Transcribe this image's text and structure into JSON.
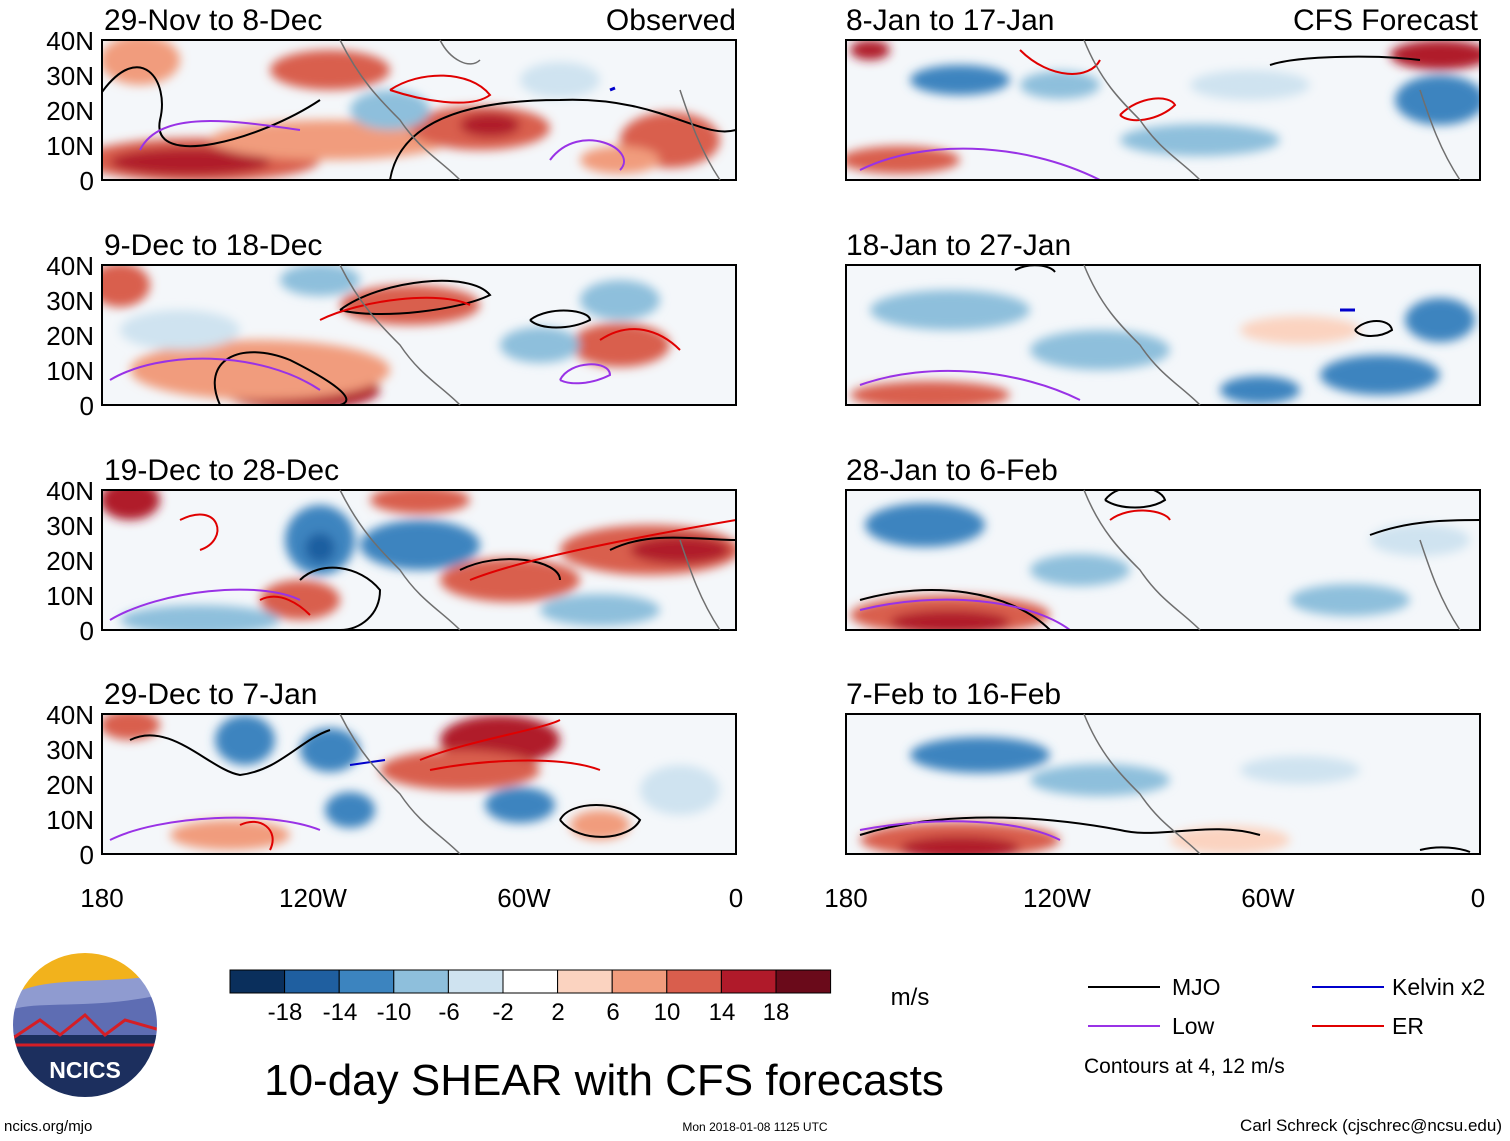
{
  "figure": {
    "title": "10-day SHEAR with CFS forecasts",
    "units": "m/s",
    "website": "ncics.org/mjo",
    "timestamp": "Mon 2018-01-08 1125 UTC",
    "author": "Carl Schreck (cjschrec@ncsu.edu)",
    "logo_text": "NCICS"
  },
  "columns": {
    "observed_label": "Observed",
    "forecast_label": "CFS Forecast"
  },
  "panels": {
    "observed": [
      "29-Nov to 8-Dec",
      "9-Dec to 18-Dec",
      "19-Dec to 28-Dec",
      "29-Dec to 7-Jan"
    ],
    "forecast": [
      "8-Jan to 17-Jan",
      "18-Jan to 27-Jan",
      "28-Jan to 6-Feb",
      "7-Feb to 16-Feb"
    ]
  },
  "axes": {
    "lat_labels": [
      "40N",
      "30N",
      "20N",
      "10N",
      "0"
    ],
    "lon_labels": [
      "180",
      "120W",
      "60W",
      "0"
    ]
  },
  "colorbar": {
    "labels": [
      "-18",
      "-14",
      "-10",
      "-6",
      "-2",
      "2",
      "6",
      "10",
      "14",
      "18"
    ],
    "colors": [
      "#0a2f5c",
      "#1f5fa0",
      "#3c84bf",
      "#8ebfdc",
      "#cfe3f0",
      "#ffffff",
      "#fbd3c0",
      "#f19c7d",
      "#d95e4d",
      "#b01a2a",
      "#6a0a1a"
    ]
  },
  "legend": {
    "mjo": "MJO",
    "low": "Low",
    "kelvin": "Kelvin x2",
    "er": "ER",
    "note": "Contours at 4, 12 m/s",
    "colors": {
      "mjo": "#000000",
      "low": "#9932e6",
      "kelvin": "#0000cc",
      "er": "#e00000"
    }
  }
}
